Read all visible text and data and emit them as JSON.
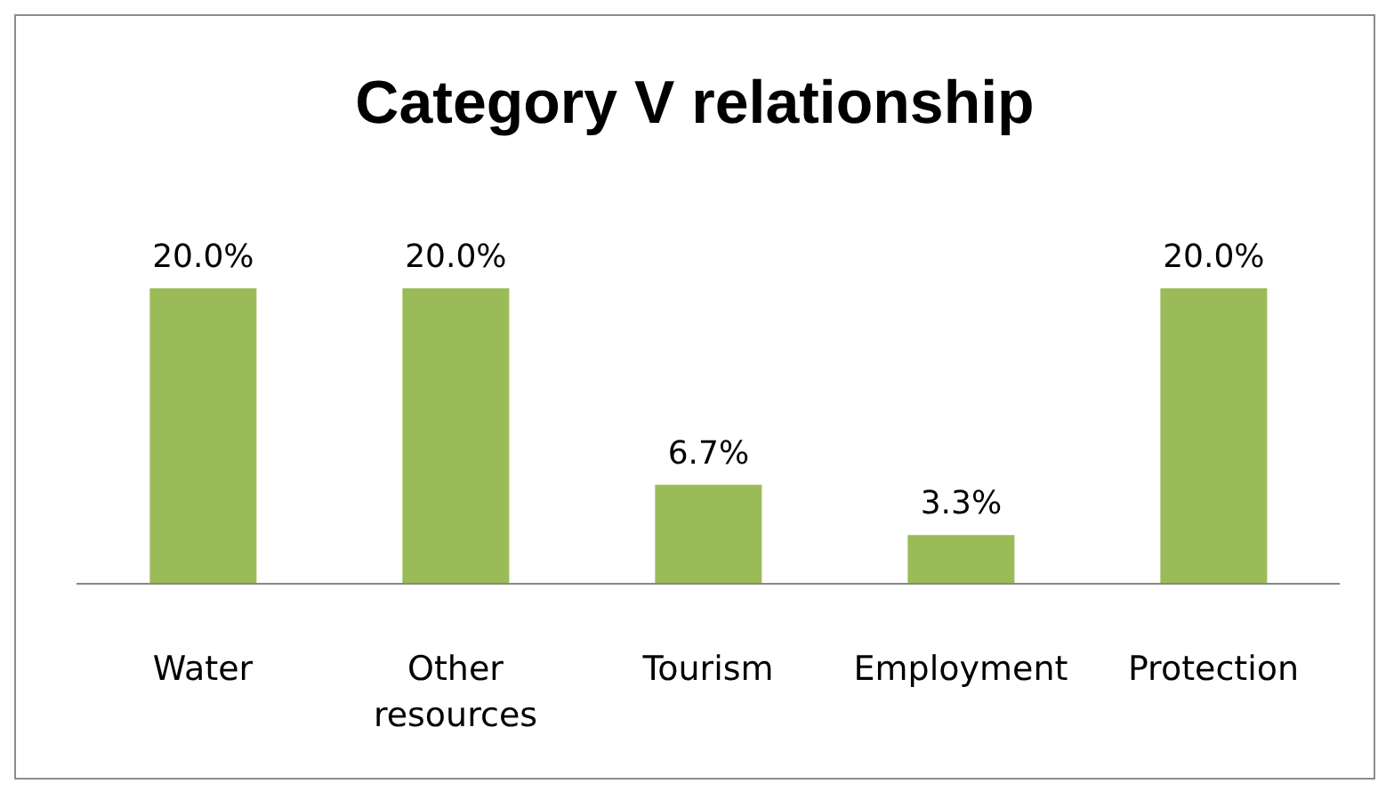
{
  "chart_data": {
    "type": "bar",
    "title": "Category V relationship",
    "categories": [
      "Water",
      "Other resources",
      "Tourism",
      "Employment",
      "Protection"
    ],
    "values": [
      20.0,
      20.0,
      6.7,
      3.3,
      20.0
    ],
    "value_labels": [
      "20.0%",
      "20.0%",
      "6.7%",
      "3.3%",
      "20.0%"
    ],
    "color": "#9bbb59",
    "ylim": [
      0,
      20
    ],
    "grid": false,
    "legend": false
  }
}
